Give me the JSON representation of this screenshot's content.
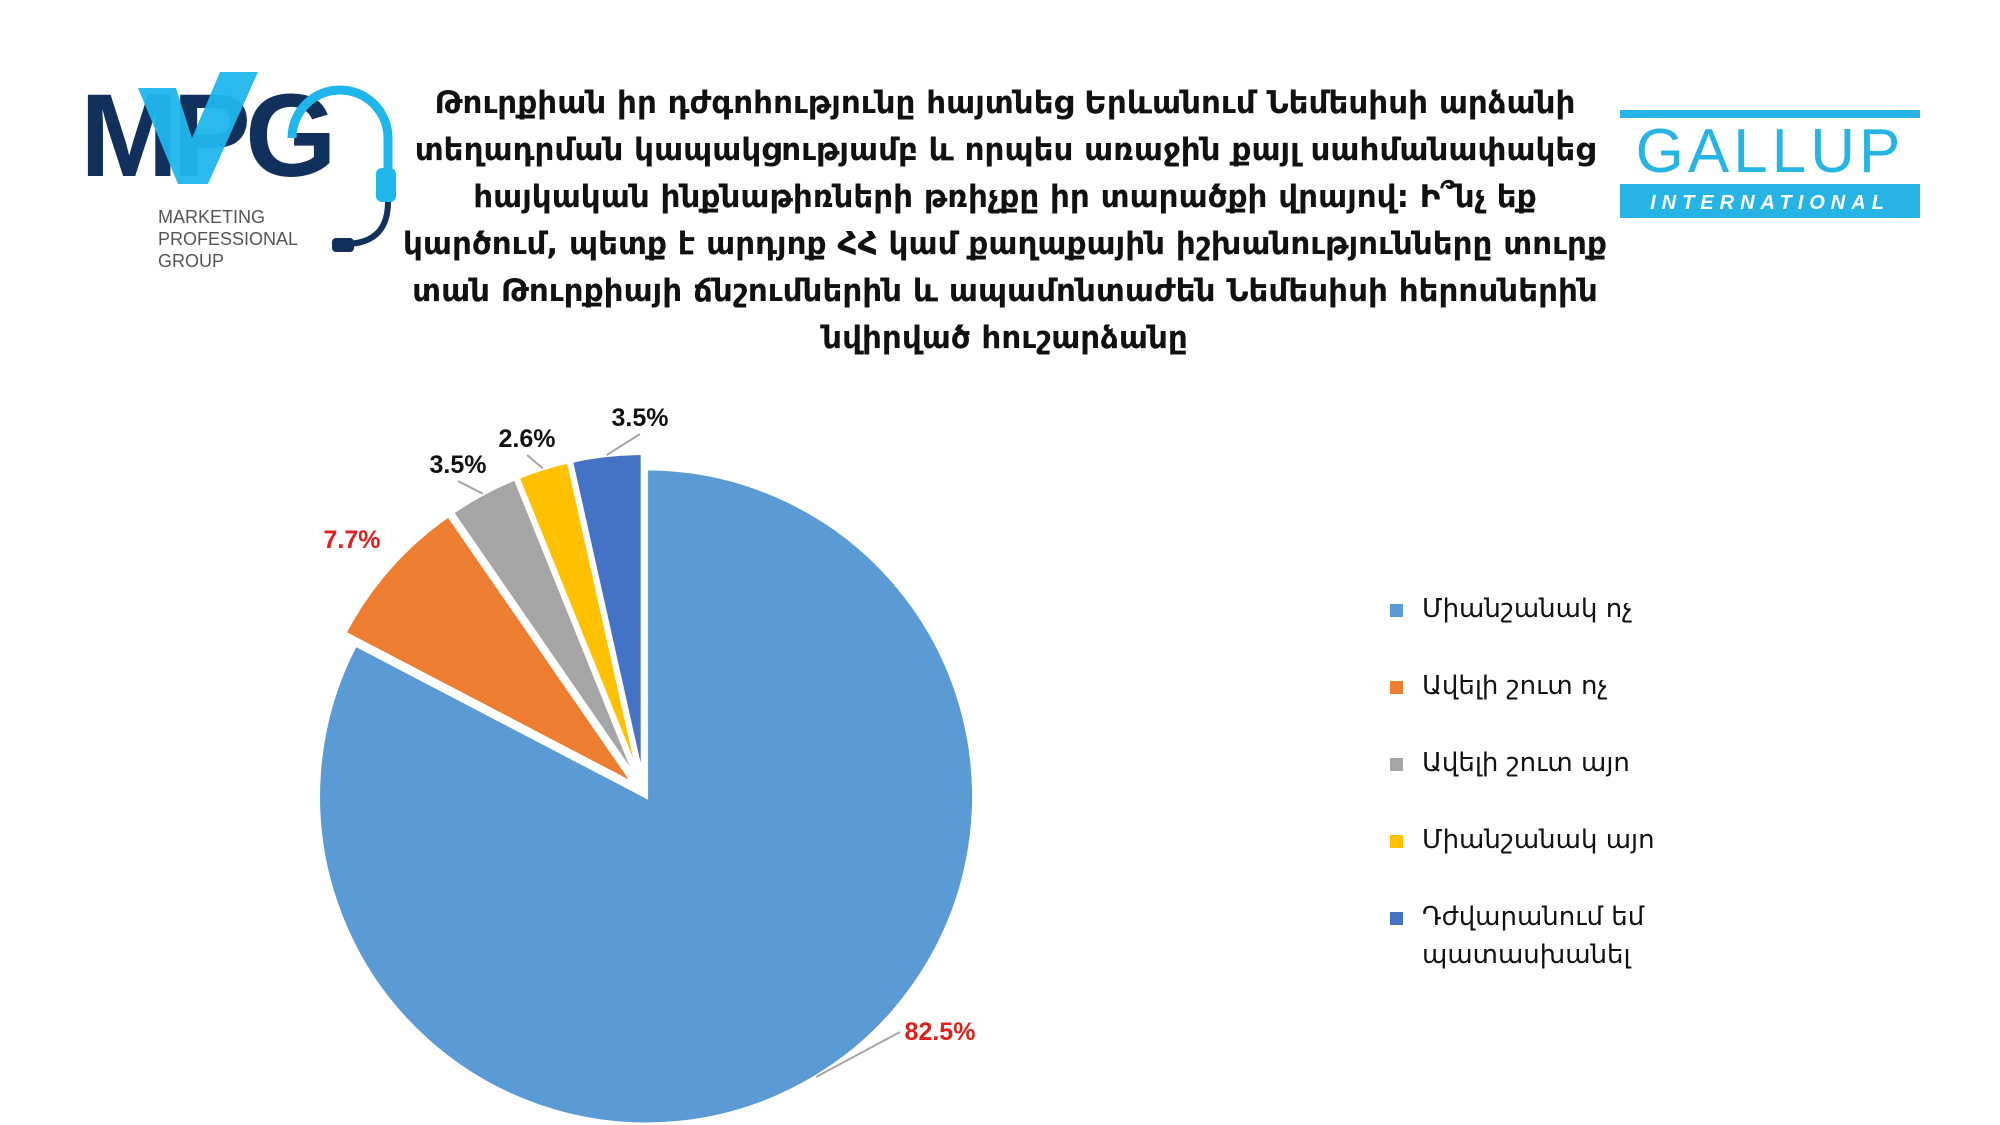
{
  "logos": {
    "mpg": {
      "letters": "MPG",
      "line1": "MARKETING",
      "line2": "PROFESSIONAL",
      "line3": "GROUP"
    },
    "gallup": {
      "name": "GALLUP",
      "sub": "INTERNATIONAL"
    }
  },
  "colors": {
    "brand_navy": "#12305c",
    "brand_cyan": "#1fb6ec",
    "gallup_blue": "#25b4e4",
    "label_red": "#e0201b"
  },
  "chart_data": {
    "type": "pie",
    "title": "Թուրքիան իր դժգոհությունը հայտնեց Երևանում Նեմեսիսի արձանի տեղադրման կապակցությամբ և որպես առաջին քայլ սահմանափակեց հայկական ինքնաթիռների թռիչքը իր տարածքի վրայով: Ի՞նչ եք կարծում, պետք է արդյոք ՀՀ կամ քաղաքային իշխանությունները տուրք տան Թուրքիայի ճնշումներին և ապամոնտաժեն Նեմեսիսի հերոսներին նվիրված հուշարձանը",
    "slices": [
      {
        "label": "Միանշանակ ոչ",
        "value": 82.5,
        "display": "82.5%",
        "color": "#5b9bd5",
        "label_color": "#e0201b"
      },
      {
        "label": "Ավելի շուտ ոչ",
        "value": 7.7,
        "display": "7.7%",
        "color": "#ed7d31",
        "label_color": "#e0201b"
      },
      {
        "label": "Ավելի շուտ այո",
        "value": 3.5,
        "display": "3.5%",
        "color": "#a5a5a5",
        "label_color": "#111111"
      },
      {
        "label": "Միանշանակ այո",
        "value": 2.6,
        "display": "2.6%",
        "color": "#ffc000",
        "label_color": "#111111"
      },
      {
        "label": "Դժվարանում եմ պատասխանել",
        "value": 3.5,
        "display": "3.5%",
        "color": "#4472c4",
        "label_color": "#111111"
      }
    ],
    "legend_position": "right"
  }
}
